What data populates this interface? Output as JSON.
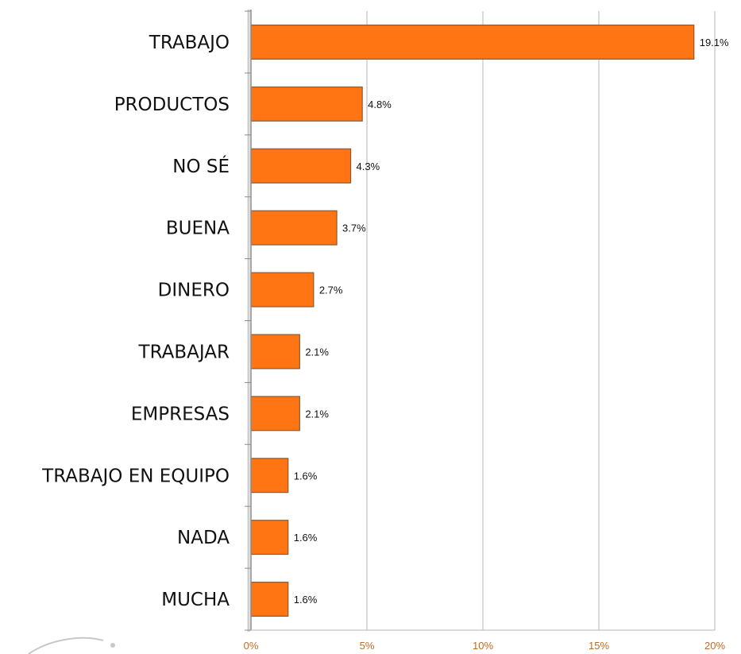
{
  "chart_data": {
    "type": "bar",
    "orientation": "horizontal",
    "categories": [
      "TRABAJO",
      "PRODUCTOS",
      "NO SÉ",
      "BUENA",
      "DINERO",
      "TRABAJAR",
      "EMPRESAS",
      "TRABAJO EN EQUIPO",
      "NADA",
      "MUCHA"
    ],
    "values": [
      19.1,
      4.8,
      4.3,
      3.7,
      2.7,
      2.1,
      2.1,
      1.6,
      1.6,
      1.6
    ],
    "value_labels": [
      "19.1%",
      "4.8%",
      "4.3%",
      "3.7%",
      "2.7%",
      "2.1%",
      "2.1%",
      "1.6%",
      "1.6%",
      "1.6%"
    ],
    "xlim": [
      0,
      20
    ],
    "x_ticks": [
      0,
      5,
      10,
      15,
      20
    ],
    "x_tick_labels": [
      "0%",
      "5%",
      "10%",
      "15%",
      "20%"
    ],
    "title": "",
    "xlabel": "",
    "ylabel": "",
    "grid": "vertical",
    "bar_color": "#ff7413",
    "bar_edge_color": "#8a5a36"
  }
}
